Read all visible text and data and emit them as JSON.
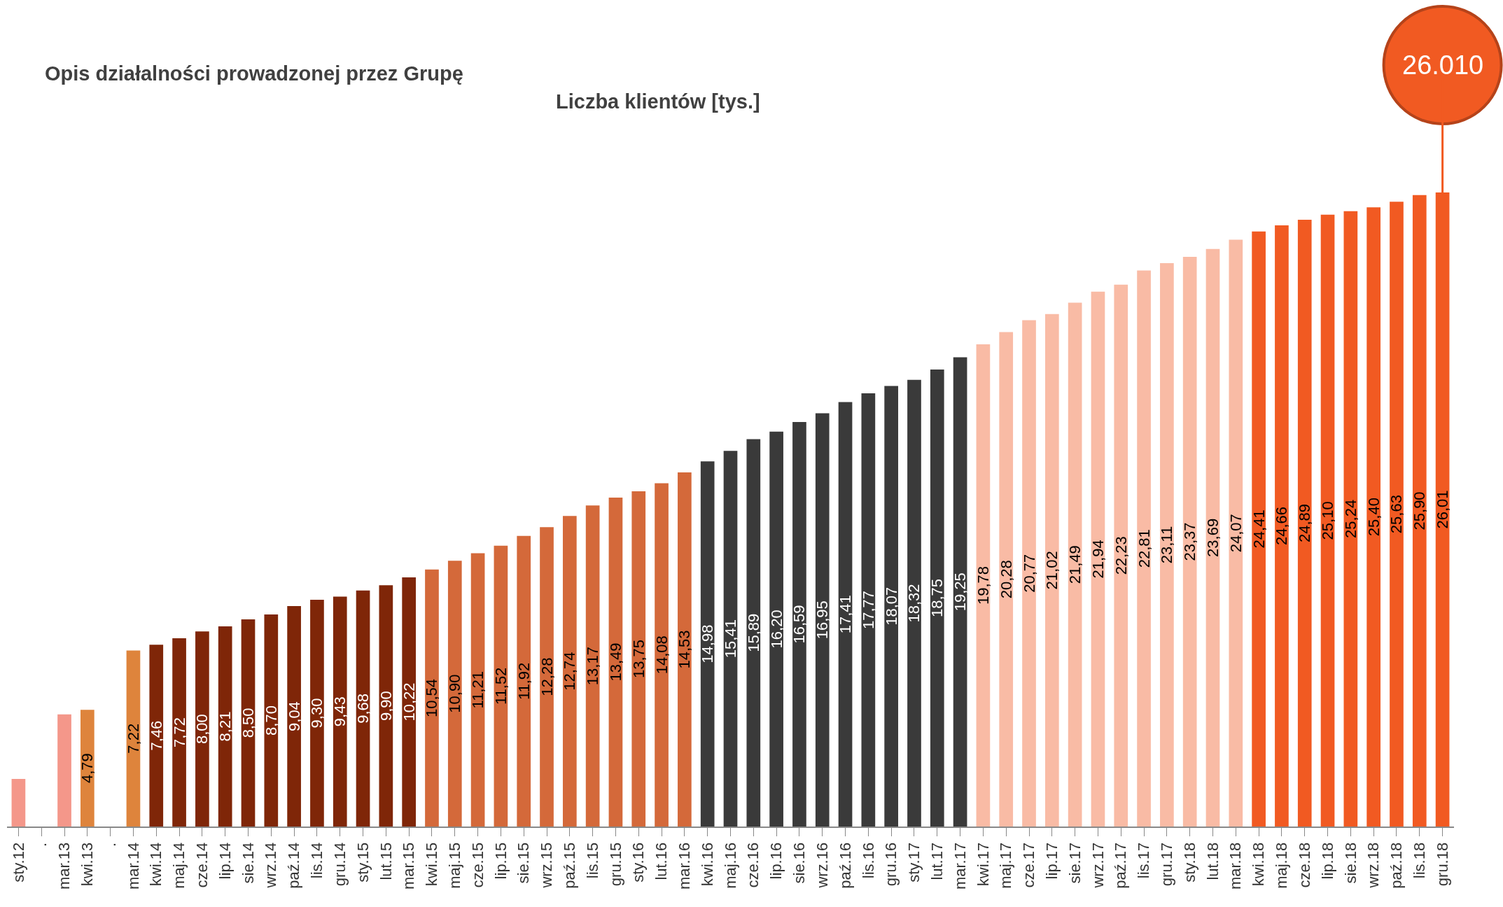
{
  "chart_data": {
    "type": "bar",
    "title": "Opis działalności prowadzonej przez Grupę",
    "subtitle": "Liczba klientów [tys.]",
    "categories": [
      "sty.12",
      ".",
      "mar.13",
      "kwi.13",
      ".",
      "mar.14",
      "kwi.14",
      "maj.14",
      "cze.14",
      "lip.14",
      "sie.14",
      "wrz.14",
      "paź.14",
      "lis.14",
      "gru.14",
      "sty.15",
      "lut.15",
      "mar.15",
      "kwi.15",
      "maj.15",
      "cze.15",
      "lip.15",
      "sie.15",
      "wrz.15",
      "paź.15",
      "lis.15",
      "gru.15",
      "sty.16",
      "lut.16",
      "mar.16",
      "kwi.16",
      "maj.16",
      "cze.16",
      "lip.16",
      "sie.16",
      "wrz.16",
      "paź.16",
      "lis.16",
      "gru.16",
      "sty.17",
      "lut.17",
      "mar.17",
      "kwi.17",
      "maj.17",
      "cze.17",
      "lip.17",
      "sie.17",
      "wrz.17",
      "paź.17",
      "lis.17",
      "gru.17",
      "sty.18",
      "lut.18",
      "mar.18",
      "kwi.18",
      "maj.18",
      "cze.18",
      "lip.18",
      "sie.18",
      "wrz.18",
      "paź.18",
      "lis.18",
      "gru.18"
    ],
    "values": [
      1.95,
      null,
      4.6,
      4.79,
      null,
      7.22,
      7.46,
      7.72,
      8.0,
      8.21,
      8.5,
      8.7,
      9.04,
      9.3,
      9.43,
      9.68,
      9.9,
      10.22,
      10.54,
      10.9,
      11.21,
      11.52,
      11.92,
      12.28,
      12.74,
      13.17,
      13.49,
      13.75,
      14.08,
      14.53,
      14.98,
      15.41,
      15.89,
      16.2,
      16.59,
      16.95,
      17.41,
      17.77,
      18.07,
      18.32,
      18.75,
      19.25,
      19.78,
      20.28,
      20.77,
      21.02,
      21.49,
      21.94,
      22.23,
      22.81,
      23.11,
      23.37,
      23.69,
      24.07,
      24.41,
      24.66,
      24.89,
      25.1,
      25.24,
      25.4,
      25.63,
      25.9,
      26.01
    ],
    "value_labels": [
      null,
      null,
      null,
      "4,79",
      null,
      "7,22",
      "7,46",
      "7,72",
      "8,00",
      "8,21",
      "8,50",
      "8,70",
      "9,04",
      "9,30",
      "9,43",
      "9,68",
      "9,90",
      "10,22",
      "10,54",
      "10,90",
      "11,21",
      "11,52",
      "11,92",
      "12,28",
      "12,74",
      "13,17",
      "13,49",
      "13,75",
      "14,08",
      "14,53",
      "14,98",
      "15,41",
      "15,89",
      "16,20",
      "16,59",
      "16,95",
      "17,41",
      "17,77",
      "18,07",
      "18,32",
      "18,75",
      "19,25",
      "19,78",
      "20,28",
      "20,77",
      "21,02",
      "21,49",
      "21,94",
      "22,23",
      "22,81",
      "23,11",
      "23,37",
      "23,69",
      "24,07",
      "24,41",
      "24,66",
      "24,89",
      "25,10",
      "25,24",
      "25,40",
      "25,63",
      "25,90",
      "26,01"
    ],
    "colors": [
      "#f4978a",
      "#f4978a",
      "#f4978a",
      "#de843c",
      "#de843c",
      "#de843c",
      "#7f2608",
      "#7f2608",
      "#7f2608",
      "#7f2608",
      "#7f2608",
      "#7f2608",
      "#7f2608",
      "#7f2608",
      "#7f2608",
      "#7f2608",
      "#7f2608",
      "#7f2608",
      "#d4693a",
      "#d4693a",
      "#d4693a",
      "#d4693a",
      "#d4693a",
      "#d4693a",
      "#d4693a",
      "#d4693a",
      "#d4693a",
      "#d4693a",
      "#d4693a",
      "#d4693a",
      "#3a3a3a",
      "#3a3a3a",
      "#3a3a3a",
      "#3a3a3a",
      "#3a3a3a",
      "#3a3a3a",
      "#3a3a3a",
      "#3a3a3a",
      "#3a3a3a",
      "#3a3a3a",
      "#3a3a3a",
      "#3a3a3a",
      "#f9bba5",
      "#f9bba5",
      "#f9bba5",
      "#f9bba5",
      "#f9bba5",
      "#f9bba5",
      "#f9bba5",
      "#f9bba5",
      "#f9bba5",
      "#f9bba5",
      "#f9bba5",
      "#f9bba5",
      "#f15a22",
      "#f15a22",
      "#f15a22",
      "#f15a22",
      "#f15a22",
      "#f15a22",
      "#f15a22",
      "#f15a22",
      "#f15a22"
    ],
    "annotations": [
      {
        "text": "26.010",
        "x": "gru.18",
        "y": 26.01
      }
    ],
    "tick_labels": "x",
    "legend": false
  }
}
